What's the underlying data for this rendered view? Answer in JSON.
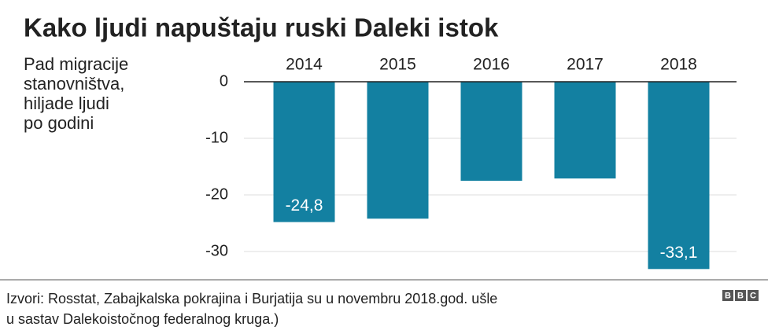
{
  "chart_data": {
    "type": "bar",
    "title": "Kako ljudi napuštaju ruski Daleki istok",
    "y_label": [
      "Pad migracije",
      "stanovništva,",
      "hiljade ljudi",
      "po godini"
    ],
    "categories": [
      "2014",
      "2015",
      "2016",
      "2017",
      "2018"
    ],
    "values": [
      -24.8,
      -24.2,
      -17.5,
      -17.1,
      -33.1
    ],
    "value_labels": [
      "-24,8",
      null,
      null,
      null,
      "-33,1"
    ],
    "color": "#1380a1",
    "ylim": [
      -33.5,
      0
    ],
    "yticks": [
      0,
      -10,
      -20,
      -30
    ],
    "grid": true,
    "source": [
      "Izvori: Rosstat, Zabajkalska pokrajina i Burjatija su u novembru 2018.god. ušle",
      "u sastav Dalekoistočnog federalnog kruga.)"
    ],
    "logo": [
      "B",
      "B",
      "C"
    ]
  }
}
